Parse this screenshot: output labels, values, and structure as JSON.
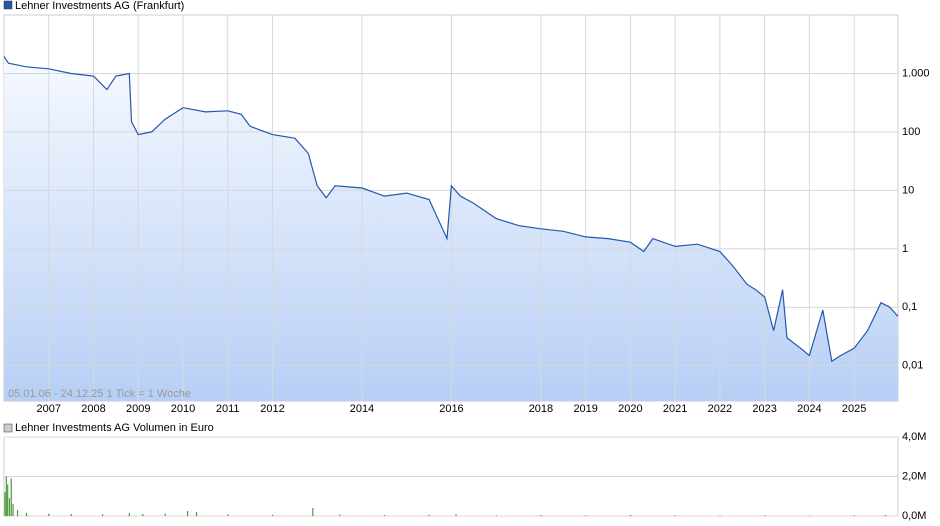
{
  "chart_data": [
    {
      "type": "line",
      "legend": "Lehner Investments AG (Frankfurt)",
      "annotation": "05.01.06 - 24.12.25   1 Tick = 1 Woche",
      "log_scale": true,
      "grid": true,
      "color": "#2457b0",
      "xlim": [
        2006.0,
        2025.98
      ],
      "xticks": [
        2007,
        2008,
        2009,
        2010,
        2011,
        2012,
        2014,
        2016,
        2018,
        2019,
        2020,
        2021,
        2022,
        2023,
        2024,
        2025
      ],
      "ylim": [
        0.0025,
        10000
      ],
      "yticks": [
        {
          "value": 0.01,
          "label": "0,01"
        },
        {
          "value": 0.1,
          "label": "0,1"
        },
        1,
        10,
        100,
        {
          "value": 1000,
          "label": "1.000"
        }
      ],
      "x": [
        2006.0,
        2006.1,
        2006.5,
        2007.0,
        2007.5,
        2008.0,
        2008.3,
        2008.5,
        2008.8,
        2008.85,
        2009.0,
        2009.3,
        2009.6,
        2010.0,
        2010.5,
        2011.0,
        2011.3,
        2011.5,
        2012.0,
        2012.5,
        2012.8,
        2013.0,
        2013.2,
        2013.4,
        2014.0,
        2014.5,
        2015.0,
        2015.5,
        2015.9,
        2016.0,
        2016.2,
        2016.5,
        2017.0,
        2017.5,
        2018.0,
        2018.5,
        2019.0,
        2019.5,
        2020.0,
        2020.3,
        2020.5,
        2021.0,
        2021.5,
        2022.0,
        2022.3,
        2022.6,
        2022.8,
        2023.0,
        2023.2,
        2023.4,
        2023.5,
        2023.8,
        2024.0,
        2024.3,
        2024.5,
        2024.7,
        2025.0,
        2025.3,
        2025.6,
        2025.8,
        2025.98
      ],
      "values": [
        1950,
        1500,
        1300,
        1200,
        1000,
        900,
        530,
        900,
        1000,
        150,
        90,
        100,
        165,
        260,
        220,
        230,
        200,
        125,
        90,
        78,
        43,
        12,
        7.5,
        12,
        11,
        8,
        9,
        7,
        1.5,
        12,
        8,
        6,
        3.3,
        2.5,
        2.2,
        2,
        1.6,
        1.5,
        1.3,
        0.9,
        1.5,
        1.1,
        1.2,
        0.9,
        0.5,
        0.25,
        0.2,
        0.15,
        0.04,
        0.2,
        0.03,
        0.02,
        0.015,
        0.09,
        0.012,
        0.015,
        0.02,
        0.04,
        0.12,
        0.1,
        0.07
      ]
    },
    {
      "type": "bar",
      "legend": "Lehner Investments AG Volumen in Euro",
      "grid": true,
      "color": "#4a9a3a",
      "xlim": [
        2006.0,
        2025.98
      ],
      "ylim": [
        0,
        4000000
      ],
      "yticks": [
        {
          "value": 0,
          "label": "0,0M"
        },
        {
          "value": 2000000,
          "label": "2,0M"
        },
        {
          "value": 4000000,
          "label": "4,0M"
        }
      ],
      "x": [
        2006.02,
        2006.05,
        2006.08,
        2006.12,
        2006.16,
        2006.2,
        2006.3,
        2006.5,
        2007.0,
        2007.5,
        2008.2,
        2008.8,
        2009.1,
        2009.6,
        2010.1,
        2010.3,
        2011.0,
        2012.0,
        2012.9,
        2013.5,
        2014.5,
        2015.5,
        2016.1,
        2017.0,
        2018.0,
        2019.0,
        2020.0,
        2021.0,
        2022.0,
        2023.0,
        2024.0,
        2025.0,
        2025.7
      ],
      "values": [
        1200000,
        2000000,
        1600000,
        900000,
        1900000,
        600000,
        300000,
        150000,
        120000,
        100000,
        90000,
        150000,
        100000,
        120000,
        250000,
        200000,
        80000,
        60000,
        400000,
        70000,
        50000,
        60000,
        80000,
        40000,
        50000,
        40000,
        50000,
        40000,
        30000,
        40000,
        30000,
        40000,
        50000
      ]
    }
  ]
}
